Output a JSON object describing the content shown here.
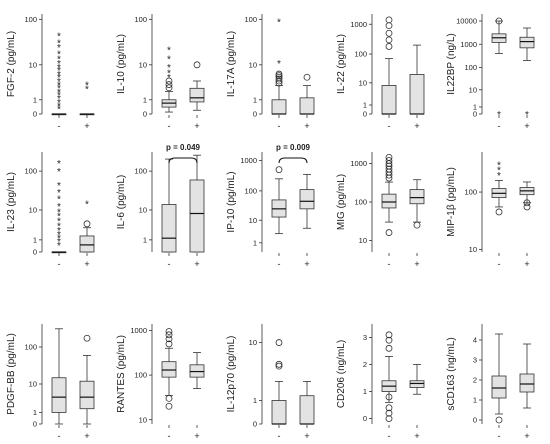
{
  "chart_data": [
    {
      "type": "box",
      "ylabel": "FGF-2 (pg/mL)",
      "scale": "symlog",
      "yticks": [
        {
          "v": 0,
          "t": "0"
        },
        {
          "v": 1,
          "t": "1"
        },
        {
          "v": 10,
          "t": "10"
        },
        {
          "v": 100,
          "t": "100"
        }
      ],
      "ylim": [
        -0.3,
        130
      ],
      "categories": [
        "-",
        "+"
      ],
      "boxes": [
        {
          "min": 0,
          "q1": 0,
          "median": 0,
          "q3": 0,
          "max": 0,
          "outliers": [],
          "extremes": [
            0.3,
            0.5,
            0.8,
            1.2,
            1.6,
            2,
            2.6,
            3.2,
            4,
            5,
            6,
            7.5,
            9,
            11,
            14,
            18,
            25,
            32,
            45
          ]
        },
        {
          "min": 0,
          "q1": 0,
          "median": 0,
          "q3": 0,
          "max": 0,
          "outliers": [],
          "extremes": [
            2.5,
            3.2
          ]
        }
      ]
    },
    {
      "type": "box",
      "ylabel": "IL-10 (pg/mL)",
      "scale": "symlog",
      "yticks": [
        {
          "v": 0,
          "t": "0"
        },
        {
          "v": 1,
          "t": "1"
        },
        {
          "v": 10,
          "t": "10"
        },
        {
          "v": 100,
          "t": "100"
        }
      ],
      "ylim": [
        -0.3,
        130
      ],
      "categories": [
        "-",
        "+"
      ],
      "boxes": [
        {
          "min": 0.1,
          "q1": 0.4,
          "median": 0.7,
          "q3": 1,
          "max": 2,
          "outliers": [
            2.6,
            3.2,
            4
          ],
          "extremes": [
            5,
            6.5,
            9,
            14,
            22
          ]
        },
        {
          "min": 0.2,
          "q1": 0.8,
          "median": 1.2,
          "q3": 2.5,
          "max": 4,
          "outliers": [
            10
          ],
          "extremes": []
        }
      ]
    },
    {
      "type": "box",
      "ylabel": "IL-17A (pg/mL)",
      "scale": "symlog",
      "yticks": [
        {
          "v": 0,
          "t": "0"
        },
        {
          "v": 1,
          "t": "1"
        },
        {
          "v": 10,
          "t": "10"
        },
        {
          "v": 100,
          "t": "100"
        }
      ],
      "ylim": [
        -0.3,
        130
      ],
      "categories": [
        "-",
        "+"
      ],
      "boxes": [
        {
          "min": 0,
          "q1": 0,
          "median": 0,
          "q3": 1,
          "max": 3,
          "outliers": [
            3.5,
            4,
            4.5,
            5,
            5.5,
            6
          ],
          "extremes": [
            11,
            90
          ]
        },
        {
          "min": 0,
          "q1": 0,
          "median": 0,
          "q3": 1.2,
          "max": 3,
          "outliers": [
            5
          ],
          "extremes": []
        }
      ]
    },
    {
      "type": "box",
      "ylabel": "IL-22 (pg/mL)",
      "scale": "symlog",
      "yticks": [
        {
          "v": 0,
          "t": "0"
        },
        {
          "v": 1,
          "t": "1"
        },
        {
          "v": 10,
          "t": "10"
        },
        {
          "v": 100,
          "t": "100"
        },
        {
          "v": 1000,
          "t": "1000"
        }
      ],
      "ylim": [
        -0.3,
        2200
      ],
      "categories": [
        "-",
        "+"
      ],
      "boxes": [
        {
          "min": 0,
          "q1": 0,
          "median": 0,
          "q3": 8,
          "max": 70,
          "outliers": [
            180,
            300,
            500,
            900,
            1400
          ],
          "extremes": []
        },
        {
          "min": 0,
          "q1": 0,
          "median": 0,
          "q3": 20,
          "max": 200,
          "outliers": [],
          "extremes": []
        }
      ]
    },
    {
      "type": "box",
      "ylabel": "IL22BP (ng/L)",
      "scale": "symlog",
      "yticks": [
        {
          "v": 0,
          "t": "0"
        },
        {
          "v": 1,
          "t": "1"
        },
        {
          "v": 10,
          "t": "10"
        },
        {
          "v": 100,
          "t": "100"
        },
        {
          "v": 1000,
          "t": "1000"
        },
        {
          "v": 10000,
          "t": "10000"
        }
      ],
      "ylim": [
        -0.3,
        20000
      ],
      "categories": [
        "-",
        "+"
      ],
      "boxes": [
        {
          "min": 400,
          "q1": 1200,
          "median": 1900,
          "q3": 2800,
          "max": 10000,
          "outliers": [
            10000
          ],
          "extremes": [
            0
          ]
        },
        {
          "min": 200,
          "q1": 700,
          "median": 1300,
          "q3": 2000,
          "max": 5000,
          "outliers": [],
          "extremes": [
            0
          ]
        }
      ]
    },
    {
      "type": "box",
      "ylabel": "IL-23 (pg/mL)",
      "scale": "symlog",
      "yticks": [
        {
          "v": 0,
          "t": "0"
        },
        {
          "v": 1,
          "t": "1"
        },
        {
          "v": 10,
          "t": "10"
        },
        {
          "v": 100,
          "t": "100"
        }
      ],
      "ylim": [
        -0.3,
        300
      ],
      "categories": [
        "-",
        "+"
      ],
      "boxes": [
        {
          "min": 0,
          "q1": 0,
          "median": 0,
          "q3": 0,
          "max": 0,
          "outliers": [],
          "extremes": [
            0.5,
            0.9,
            1.3,
            1.8,
            2.5,
            3.5,
            5,
            7,
            9,
            13,
            20,
            30,
            45,
            100,
            160
          ]
        },
        {
          "min": 0,
          "q1": 0,
          "median": 0.5,
          "q3": 1.5,
          "max": 3,
          "outliers": [
            4
          ],
          "extremes": [
            15
          ]
        }
      ]
    },
    {
      "type": "box",
      "ylabel": "IL-6 (pg/mL)",
      "scale": "symlog",
      "yticks": [
        {
          "v": 1,
          "t": "1"
        },
        {
          "v": 10,
          "t": "10"
        },
        {
          "v": 100,
          "t": "100"
        }
      ],
      "ylim": [
        -0.3,
        300
      ],
      "categories": [
        "-",
        "+"
      ],
      "pvalue": "p = 0.049",
      "boxes": [
        {
          "min": 0,
          "q1": 0,
          "median": 1.2,
          "q3": 14,
          "max": 200,
          "outliers": [],
          "extremes": []
        },
        {
          "min": 0,
          "q1": 0,
          "median": 8,
          "q3": 60,
          "max": 250,
          "outliers": [],
          "extremes": []
        }
      ]
    },
    {
      "type": "box",
      "ylabel": "IP-10 (pg/mL)",
      "scale": "symlog",
      "yticks": [
        {
          "v": 1,
          "t": "1"
        },
        {
          "v": 10,
          "t": "10"
        },
        {
          "v": 100,
          "t": "100"
        },
        {
          "v": 1000,
          "t": "1000"
        }
      ],
      "ylim": [
        -0.3,
        1900
      ],
      "categories": [
        "-",
        "+"
      ],
      "pvalue": "p = 0.009",
      "boxes": [
        {
          "min": 3,
          "q1": 13,
          "median": 25,
          "q3": 50,
          "max": 250,
          "outliers": [
            500
          ],
          "extremes": []
        },
        {
          "min": 5,
          "q1": 25,
          "median": 45,
          "q3": 110,
          "max": 350,
          "outliers": [],
          "extremes": []
        }
      ]
    },
    {
      "type": "box",
      "ylabel": "MIG (pg/mL)",
      "scale": "log",
      "yticks": [
        {
          "v": 10,
          "t": "10"
        },
        {
          "v": 100,
          "t": "100"
        },
        {
          "v": 1000,
          "t": "1000"
        }
      ],
      "ylim": [
        5,
        2000
      ],
      "categories": [
        "-",
        "+"
      ],
      "boxes": [
        {
          "min": 30,
          "q1": 70,
          "median": 100,
          "q3": 160,
          "max": 330,
          "outliers": [
            420,
            500,
            600,
            720,
            860,
            1000,
            1200,
            1450,
            16
          ],
          "extremes": []
        },
        {
          "min": 30,
          "q1": 90,
          "median": 130,
          "q3": 210,
          "max": 380,
          "outliers": [
            25
          ],
          "extremes": []
        }
      ]
    },
    {
      "type": "box",
      "ylabel": "MIP-1β (pg/mL)",
      "scale": "log",
      "yticks": [
        {
          "v": 10,
          "t": "10"
        },
        {
          "v": 100,
          "t": "100"
        }
      ],
      "ylim": [
        9,
        500
      ],
      "categories": [
        "-",
        "+"
      ],
      "boxes": [
        {
          "min": 55,
          "q1": 80,
          "median": 95,
          "q3": 115,
          "max": 160,
          "outliers": [
            45
          ],
          "extremes": [
            200,
            250,
            300
          ]
        },
        {
          "min": 65,
          "q1": 90,
          "median": 105,
          "q3": 120,
          "max": 150,
          "outliers": [
            55,
            65
          ],
          "extremes": []
        }
      ]
    },
    {
      "type": "box",
      "ylabel": "PDGF-BB (pg/mL)",
      "scale": "symlog",
      "yticks": [
        {
          "v": 0,
          "t": "0"
        },
        {
          "v": 1,
          "t": "1"
        },
        {
          "v": 10,
          "t": "10"
        },
        {
          "v": 100,
          "t": "100"
        }
      ],
      "ylim": [
        -0.3,
        400
      ],
      "categories": [
        "-",
        "+"
      ],
      "boxes": [
        {
          "min": 0,
          "q1": 1,
          "median": 4,
          "q3": 15,
          "max": 300,
          "outliers": [],
          "extremes": []
        },
        {
          "min": 0,
          "q1": 1.5,
          "median": 4,
          "q3": 12,
          "max": 60,
          "outliers": [
            170
          ],
          "extremes": []
        }
      ]
    },
    {
      "type": "box",
      "ylabel": "RANTES (pg/mL)",
      "scale": "log",
      "yticks": [
        {
          "v": 10,
          "t": "10"
        },
        {
          "v": 100,
          "t": "100"
        },
        {
          "v": 1000,
          "t": "1000"
        }
      ],
      "ylim": [
        8,
        1400
      ],
      "categories": [
        "-",
        "+"
      ],
      "boxes": [
        {
          "min": 35,
          "q1": 90,
          "median": 130,
          "q3": 200,
          "max": 400,
          "outliers": [
            20,
            30,
            500,
            650,
            800,
            950
          ],
          "extremes": []
        },
        {
          "min": 50,
          "q1": 90,
          "median": 120,
          "q3": 170,
          "max": 320,
          "outliers": [],
          "extremes": []
        }
      ]
    },
    {
      "type": "box",
      "ylabel": "IL-12p70 (pg/mL)",
      "scale": "symlog",
      "yticks": [
        {
          "v": 0,
          "t": "0"
        },
        {
          "v": 1,
          "t": "1"
        },
        {
          "v": 10,
          "t": "10"
        }
      ],
      "ylim": [
        -0.3,
        18
      ],
      "categories": [
        "-",
        "+"
      ],
      "boxes": [
        {
          "min": 0,
          "q1": 0,
          "median": 0,
          "q3": 1,
          "max": 2.5,
          "outliers": [
            4.5,
            4.8,
            10
          ],
          "extremes": []
        },
        {
          "min": 0,
          "q1": 0,
          "median": 0,
          "q3": 1.3,
          "max": 2.5,
          "outliers": [],
          "extremes": []
        }
      ]
    },
    {
      "type": "box",
      "ylabel": "CD206 (ng/mL)",
      "scale": "linear",
      "yticks": [
        {
          "v": 0,
          "t": "0"
        },
        {
          "v": 1,
          "t": "1"
        },
        {
          "v": 2,
          "t": "2"
        },
        {
          "v": 3,
          "t": "3"
        }
      ],
      "ylim": [
        -0.2,
        3.5
      ],
      "categories": [
        "-",
        "+"
      ],
      "boxes": [
        {
          "min": 0.6,
          "q1": 1,
          "median": 1.2,
          "q3": 1.4,
          "max": 2.3,
          "outliers": [
            0,
            0.2,
            0.4,
            0.8,
            2.6,
            2.9,
            3.1
          ],
          "extremes": []
        },
        {
          "min": 0.9,
          "q1": 1.15,
          "median": 1.3,
          "q3": 1.4,
          "max": 2,
          "outliers": [],
          "extremes": []
        }
      ]
    },
    {
      "type": "box",
      "ylabel": "sCD163 (ng/mL)",
      "scale": "linear",
      "yticks": [
        {
          "v": 0,
          "t": "0"
        },
        {
          "v": 1,
          "t": "1"
        },
        {
          "v": 2,
          "t": "2"
        },
        {
          "v": 3,
          "t": "3"
        },
        {
          "v": 4,
          "t": "4"
        }
      ],
      "ylim": [
        -0.2,
        4.8
      ],
      "categories": [
        "-",
        "+"
      ],
      "boxes": [
        {
          "min": 0.3,
          "q1": 1.1,
          "median": 1.6,
          "q3": 2.2,
          "max": 4.3,
          "outliers": [
            0
          ],
          "extremes": []
        },
        {
          "min": 0.6,
          "q1": 1.4,
          "median": 1.8,
          "q3": 2.3,
          "max": 3.8,
          "outliers": [],
          "extremes": []
        }
      ]
    }
  ]
}
